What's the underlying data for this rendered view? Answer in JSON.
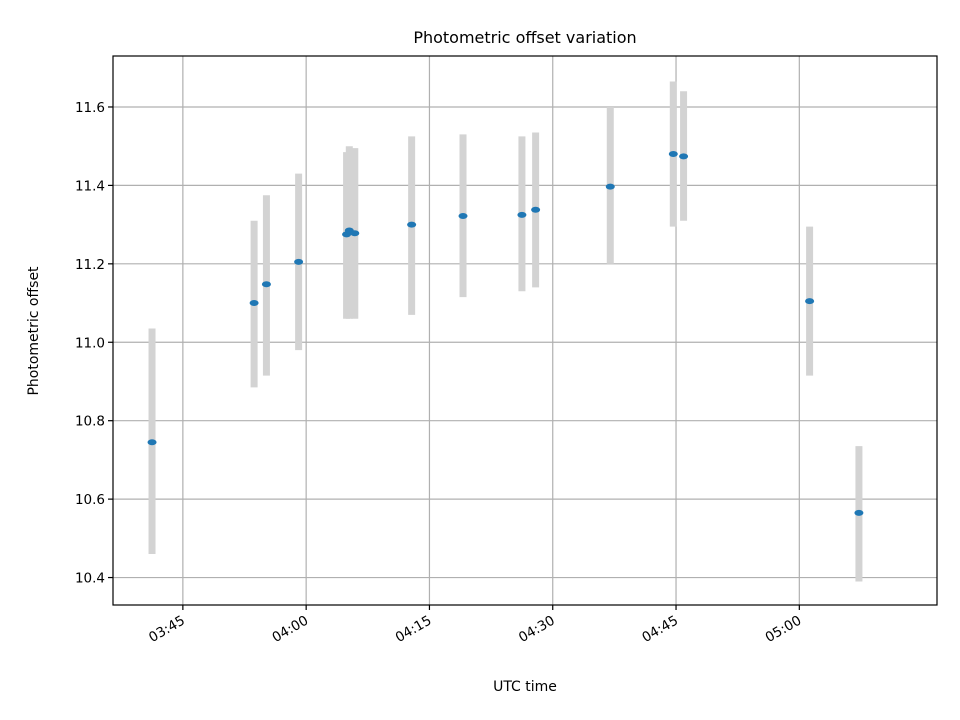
{
  "chart_data": {
    "type": "scatter",
    "title": "Photometric offset variation",
    "xlabel": "UTC time",
    "ylabel": "Photometric offset",
    "x_is_time": true,
    "xlim": [
      "03:36:30",
      "05:16:45"
    ],
    "ylim": [
      10.33,
      11.73
    ],
    "x_ticks": [
      "03:45",
      "04:00",
      "04:15",
      "04:30",
      "04:45",
      "05:00"
    ],
    "y_ticks": [
      10.4,
      10.6,
      10.8,
      11.0,
      11.2,
      11.4,
      11.6
    ],
    "grid": true,
    "colors": {
      "point": "#1f77b4",
      "errorbar": "#d3d3d3",
      "grid": "#b0b0b0",
      "axes": "#000000"
    },
    "points": [
      {
        "x": "03:41:15",
        "y": 10.745,
        "ylow": 10.46,
        "yhigh": 11.035
      },
      {
        "x": "03:53:40",
        "y": 11.1,
        "ylow": 10.885,
        "yhigh": 11.31
      },
      {
        "x": "03:55:10",
        "y": 11.148,
        "ylow": 10.915,
        "yhigh": 11.375
      },
      {
        "x": "03:59:05",
        "y": 11.205,
        "ylow": 10.98,
        "yhigh": 11.43
      },
      {
        "x": "04:04:55",
        "y": 11.275,
        "ylow": 11.06,
        "yhigh": 11.485
      },
      {
        "x": "04:05:15",
        "y": 11.285,
        "ylow": 11.06,
        "yhigh": 11.5
      },
      {
        "x": "04:05:55",
        "y": 11.278,
        "ylow": 11.06,
        "yhigh": 11.495
      },
      {
        "x": "04:12:50",
        "y": 11.3,
        "ylow": 11.07,
        "yhigh": 11.525
      },
      {
        "x": "04:19:05",
        "y": 11.322,
        "ylow": 11.115,
        "yhigh": 11.53
      },
      {
        "x": "04:26:15",
        "y": 11.325,
        "ylow": 11.13,
        "yhigh": 11.525
      },
      {
        "x": "04:27:55",
        "y": 11.338,
        "ylow": 11.14,
        "yhigh": 11.535
      },
      {
        "x": "04:37:00",
        "y": 11.397,
        "ylow": 11.2,
        "yhigh": 11.6
      },
      {
        "x": "04:44:40",
        "y": 11.48,
        "ylow": 11.295,
        "yhigh": 11.665
      },
      {
        "x": "04:45:55",
        "y": 11.474,
        "ylow": 11.31,
        "yhigh": 11.64
      },
      {
        "x": "05:01:15",
        "y": 11.105,
        "ylow": 10.915,
        "yhigh": 11.295
      },
      {
        "x": "05:07:15",
        "y": 10.565,
        "ylow": 10.39,
        "yhigh": 10.735
      }
    ]
  }
}
